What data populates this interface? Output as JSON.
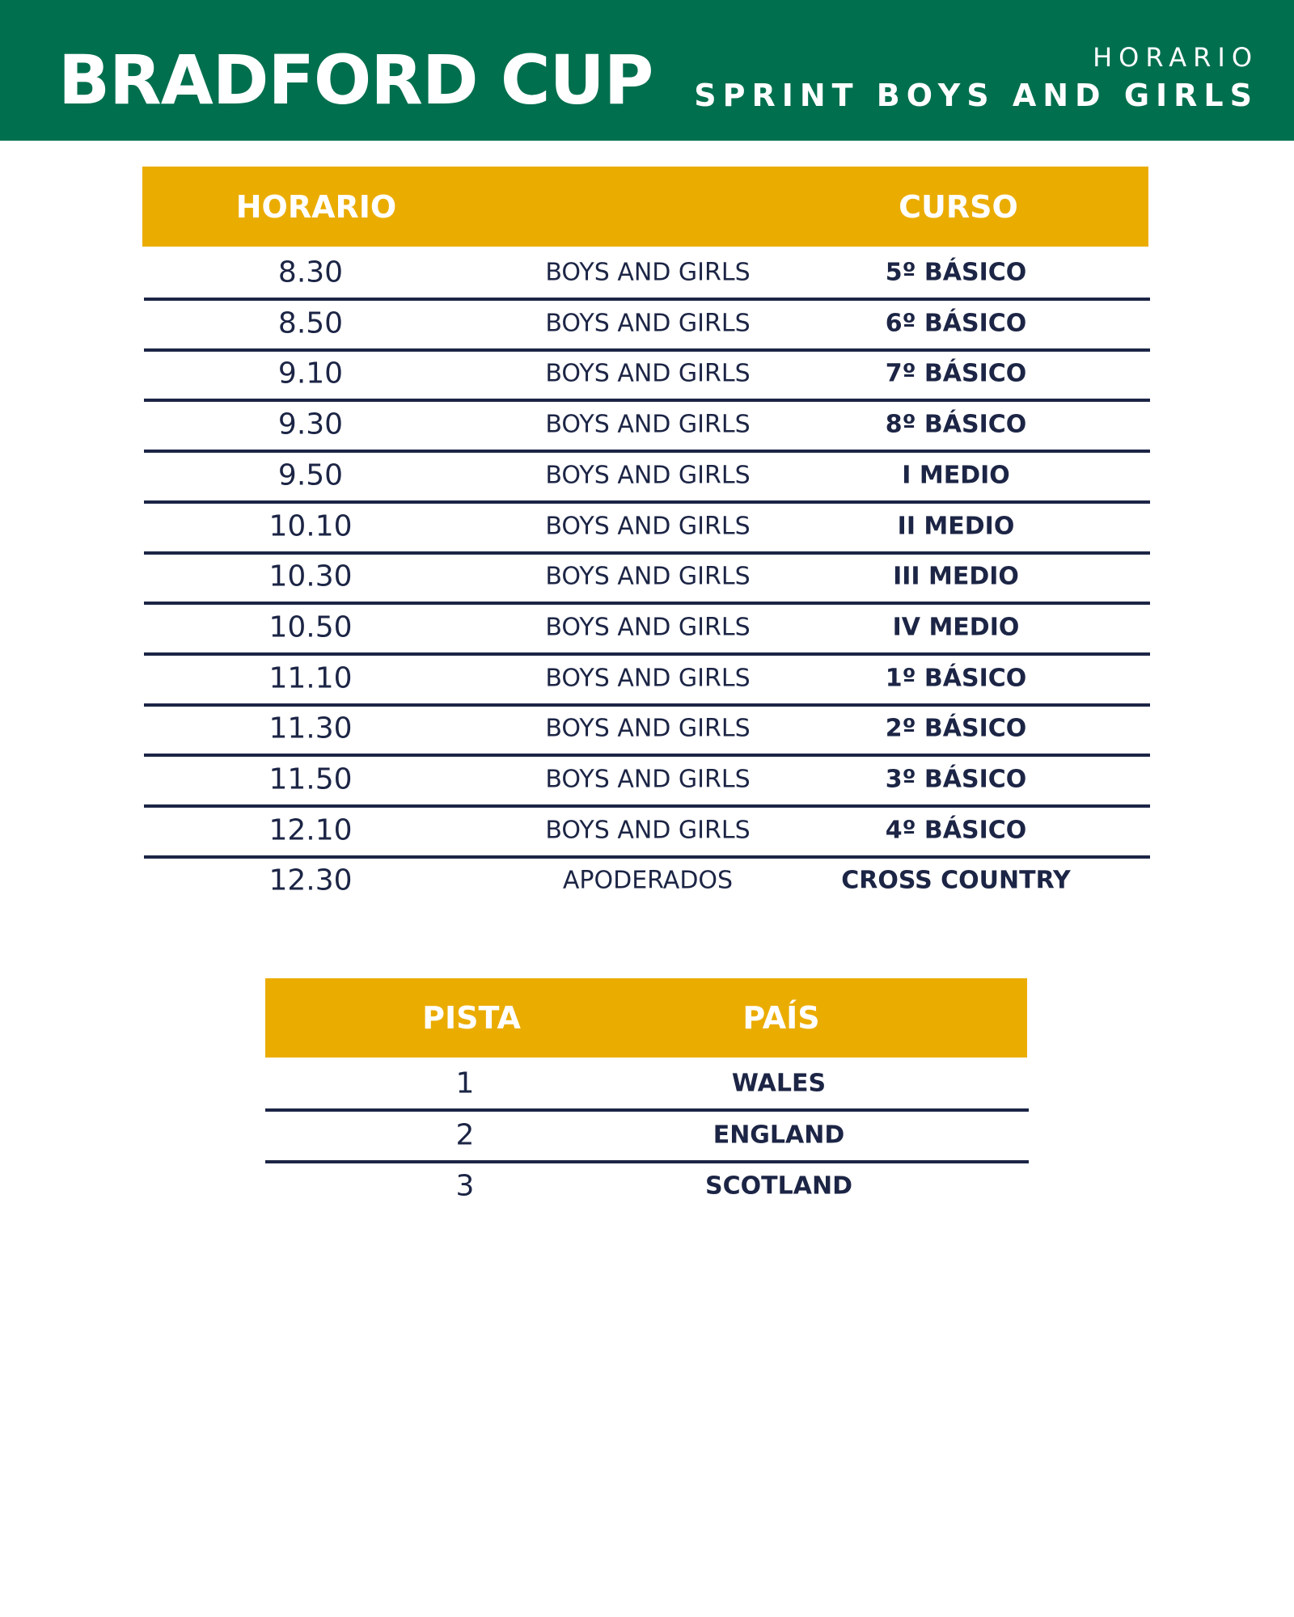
{
  "header": {
    "title": "BRADFORD CUP",
    "subtitle_top": "HORARIO",
    "subtitle_bottom": "SPRINT BOYS AND GIRLS"
  },
  "colors": {
    "green": "#006f4e",
    "gold": "#ebac00",
    "navy": "#1c2545"
  },
  "schedule": {
    "headers": {
      "time": "HORARIO",
      "course": "CURSO"
    },
    "rows": [
      {
        "time": "8.30",
        "group": "BOYS AND GIRLS",
        "course": "5º BÁSICO"
      },
      {
        "time": "8.50",
        "group": "BOYS AND GIRLS",
        "course": "6º BÁSICO"
      },
      {
        "time": "9.10",
        "group": "BOYS AND GIRLS",
        "course": "7º BÁSICO"
      },
      {
        "time": "9.30",
        "group": "BOYS AND GIRLS",
        "course": "8º BÁSICO"
      },
      {
        "time": "9.50",
        "group": "BOYS AND GIRLS",
        "course": "I MEDIO"
      },
      {
        "time": "10.10",
        "group": "BOYS AND GIRLS",
        "course": "II MEDIO"
      },
      {
        "time": "10.30",
        "group": "BOYS AND GIRLS",
        "course": "III MEDIO"
      },
      {
        "time": "10.50",
        "group": "BOYS AND GIRLS",
        "course": "IV MEDIO"
      },
      {
        "time": "11.10",
        "group": "BOYS AND GIRLS",
        "course": "1º BÁSICO"
      },
      {
        "time": "11.30",
        "group": "BOYS AND GIRLS",
        "course": "2º BÁSICO"
      },
      {
        "time": "11.50",
        "group": "BOYS AND GIRLS",
        "course": "3º BÁSICO"
      },
      {
        "time": "12.10",
        "group": "BOYS AND GIRLS",
        "course": "4º BÁSICO"
      },
      {
        "time": "12.30",
        "group": "APODERADOS",
        "course": "CROSS COUNTRY"
      }
    ]
  },
  "tracks": {
    "headers": {
      "track": "PISTA",
      "country": "PAÍS"
    },
    "rows": [
      {
        "track": "1",
        "country": "WALES"
      },
      {
        "track": "2",
        "country": "ENGLAND"
      },
      {
        "track": "3",
        "country": "SCOTLAND"
      }
    ]
  }
}
